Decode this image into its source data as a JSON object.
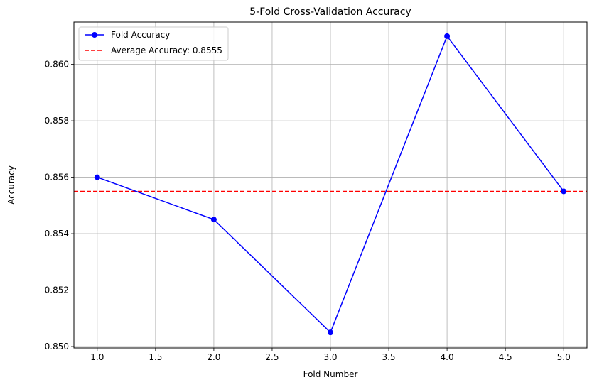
{
  "chart_data": {
    "type": "line",
    "title": "5-Fold Cross-Validation Accuracy",
    "xlabel": "Fold Number",
    "ylabel": "Accuracy",
    "xlim": [
      0.8,
      5.2
    ],
    "ylim": [
      0.84995,
      0.8615
    ],
    "xticks": [
      1.0,
      1.5,
      2.0,
      2.5,
      3.0,
      3.5,
      4.0,
      4.5,
      5.0
    ],
    "xtick_labels": [
      "1.0",
      "1.5",
      "2.0",
      "2.5",
      "3.0",
      "3.5",
      "4.0",
      "4.5",
      "5.0"
    ],
    "yticks": [
      0.85,
      0.852,
      0.854,
      0.856,
      0.858,
      0.86
    ],
    "ytick_labels": [
      "0.850",
      "0.852",
      "0.854",
      "0.856",
      "0.858",
      "0.860"
    ],
    "grid": true,
    "legend_position": "top-left",
    "series": [
      {
        "name": "Fold Accuracy",
        "x": [
          1,
          2,
          3,
          4,
          5
        ],
        "values": [
          0.856,
          0.8545,
          0.8505,
          0.861,
          0.8555
        ],
        "color": "#0000ff",
        "marker": "circle",
        "style": "solid"
      }
    ],
    "reference_lines": [
      {
        "name": "Average Accuracy: 0.8555",
        "y": 0.8555,
        "color": "#ff0000",
        "style": "dashed"
      }
    ]
  }
}
